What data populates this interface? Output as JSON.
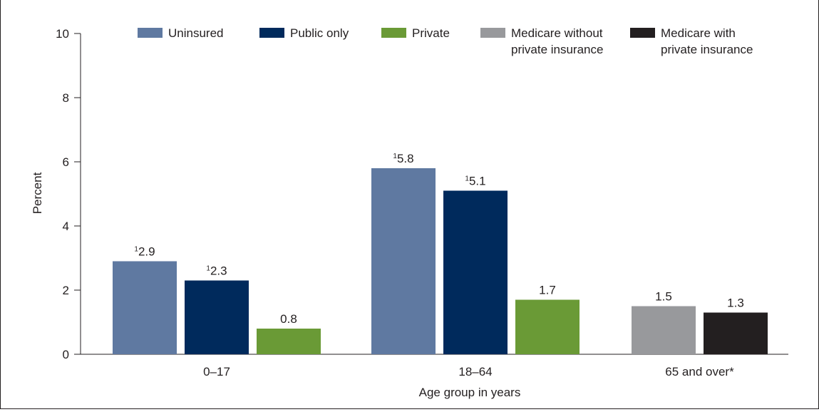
{
  "chart_data": {
    "type": "bar",
    "ylabel": "Percent",
    "xlabel": "Age group in years",
    "ylim": [
      0,
      10
    ],
    "yticks": [
      0,
      2,
      4,
      6,
      8,
      10
    ],
    "grid": false,
    "legend_position": "top-right",
    "categories": [
      "0–17",
      "18–64",
      "65 and over*"
    ],
    "series": [
      {
        "name": "Uninsured",
        "color": "#5f79a1",
        "values": [
          2.9,
          5.8,
          null
        ],
        "labels": [
          "2.9",
          "5.8",
          null
        ],
        "footnotes": [
          "1",
          "1",
          null
        ]
      },
      {
        "name": "Public only",
        "color": "#002a5c",
        "values": [
          2.3,
          5.1,
          null
        ],
        "labels": [
          "2.3",
          "5.1",
          null
        ],
        "footnotes": [
          "1",
          "1",
          null
        ]
      },
      {
        "name": "Private",
        "color": "#6a9a36",
        "values": [
          0.8,
          1.7,
          null
        ],
        "labels": [
          "0.8",
          "1.7",
          null
        ],
        "footnotes": [
          null,
          null,
          null
        ]
      },
      {
        "name": "Medicare without private insurance",
        "legend_lines": [
          "Medicare without",
          "private insurance"
        ],
        "color": "#98999c",
        "values": [
          null,
          null,
          1.5
        ],
        "labels": [
          null,
          null,
          "1.5"
        ],
        "footnotes": [
          null,
          null,
          null
        ]
      },
      {
        "name": "Medicare with private insurance",
        "legend_lines": [
          "Medicare with",
          "private insurance"
        ],
        "color": "#231f20",
        "values": [
          null,
          null,
          1.3
        ],
        "labels": [
          null,
          null,
          "1.3"
        ],
        "footnotes": [
          null,
          null,
          null
        ]
      }
    ]
  }
}
